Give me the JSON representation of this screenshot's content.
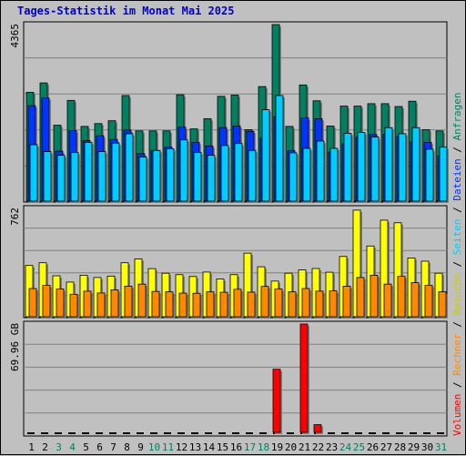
{
  "title": "Tages-Statistik im Monat Mai 2025",
  "colors": {
    "anfragen": "#008060",
    "dateien": "#0033ff",
    "seiten": "#00ccff",
    "besuche": "#ffff00",
    "rechner": "#ff8800",
    "volumen": "#ff0000",
    "weekday_label": "#000000",
    "weekend_label": "#008060",
    "title": "#0000cc"
  },
  "legend_right": [
    {
      "text": "Volumen",
      "color": "#ff0000"
    },
    {
      "text": "Rechner",
      "color": "#ff8800"
    },
    {
      "text": "Besuche",
      "color": "#cccc00"
    },
    {
      "text": "Seiten",
      "color": "#00ccff"
    },
    {
      "text": "Dateien",
      "color": "#0033ff"
    },
    {
      "text": "Anfragen",
      "color": "#008060"
    }
  ],
  "chart_data": [
    {
      "type": "bar",
      "panel": "top",
      "ylabel": "4365",
      "ylim": [
        0,
        4365
      ],
      "categories": [
        "1",
        "2",
        "3",
        "4",
        "5",
        "6",
        "7",
        "8",
        "9",
        "10",
        "11",
        "12",
        "13",
        "14",
        "15",
        "16",
        "17",
        "18",
        "19",
        "20",
        "21",
        "22",
        "23",
        "24",
        "25",
        "26",
        "27",
        "28",
        "29",
        "30",
        "31"
      ],
      "weekend": [
        3,
        4,
        10,
        11,
        17,
        18,
        24,
        25,
        31
      ],
      "series": [
        {
          "name": "Anfragen",
          "values": [
            2700,
            2930,
            1890,
            2500,
            1860,
            1930,
            2000,
            2620,
            1750,
            1750,
            1750,
            2640,
            1800,
            2050,
            2600,
            2630,
            1780,
            2840,
            4365,
            1860,
            2880,
            2490,
            1870,
            2360,
            2360,
            2420,
            2420,
            2350,
            2480,
            1780,
            1750
          ]
        },
        {
          "name": "Dateien",
          "values": [
            2370,
            2560,
            1250,
            1760,
            1510,
            1630,
            1540,
            1770,
            1190,
            1270,
            1350,
            1840,
            1470,
            1380,
            1830,
            1870,
            1740,
            1570,
            2100,
            1260,
            2070,
            2050,
            1230,
            1430,
            1590,
            1660,
            1670,
            1620,
            1480,
            1470,
            1130
          ]
        },
        {
          "name": "Seiten",
          "values": [
            1410,
            1240,
            1150,
            1220,
            1470,
            1240,
            1450,
            1680,
            1110,
            1270,
            1310,
            1530,
            1220,
            1150,
            1390,
            1440,
            1270,
            2270,
            2620,
            1210,
            1320,
            1500,
            1320,
            1690,
            1710,
            1600,
            1830,
            1680,
            1830,
            1300,
            1350
          ]
        }
      ]
    },
    {
      "type": "bar",
      "panel": "middle",
      "ylabel": "762",
      "ylim": [
        0,
        762
      ],
      "categories": [
        "1",
        "2",
        "3",
        "4",
        "5",
        "6",
        "7",
        "8",
        "9",
        "10",
        "11",
        "12",
        "13",
        "14",
        "15",
        "16",
        "17",
        "18",
        "19",
        "20",
        "21",
        "22",
        "23",
        "24",
        "25",
        "26",
        "27",
        "28",
        "29",
        "30",
        "31"
      ],
      "series": [
        {
          "name": "Besuche",
          "values": [
            364,
            383,
            292,
            248,
            296,
            280,
            290,
            383,
            410,
            342,
            310,
            300,
            287,
            318,
            270,
            300,
            450,
            355,
            255,
            310,
            333,
            343,
            317,
            427,
            750,
            500,
            680,
            662,
            416,
            394,
            310
          ]
        },
        {
          "name": "Rechner",
          "values": [
            203,
            225,
            200,
            163,
            185,
            172,
            194,
            220,
            234,
            183,
            180,
            171,
            170,
            180,
            177,
            198,
            178,
            218,
            200,
            180,
            203,
            185,
            187,
            219,
            280,
            296,
            234,
            288,
            244,
            226,
            180
          ]
        }
      ]
    },
    {
      "type": "bar",
      "panel": "bottom",
      "ylabel": "69.96 GB",
      "ylim": [
        0,
        69.96
      ],
      "categories": [
        "1",
        "2",
        "3",
        "4",
        "5",
        "6",
        "7",
        "8",
        "9",
        "10",
        "11",
        "12",
        "13",
        "14",
        "15",
        "16",
        "17",
        "18",
        "19",
        "20",
        "21",
        "22",
        "23",
        "24",
        "25",
        "26",
        "27",
        "28",
        "29",
        "30",
        "31"
      ],
      "series": [
        {
          "name": "Volumen",
          "values": [
            0,
            0,
            0,
            0,
            0,
            0,
            0,
            0,
            0,
            0,
            0,
            0,
            0,
            0,
            0,
            0,
            0,
            0,
            41,
            0,
            69.96,
            5.5,
            0,
            0,
            0,
            0,
            0,
            0,
            0,
            0,
            0
          ]
        }
      ]
    }
  ]
}
